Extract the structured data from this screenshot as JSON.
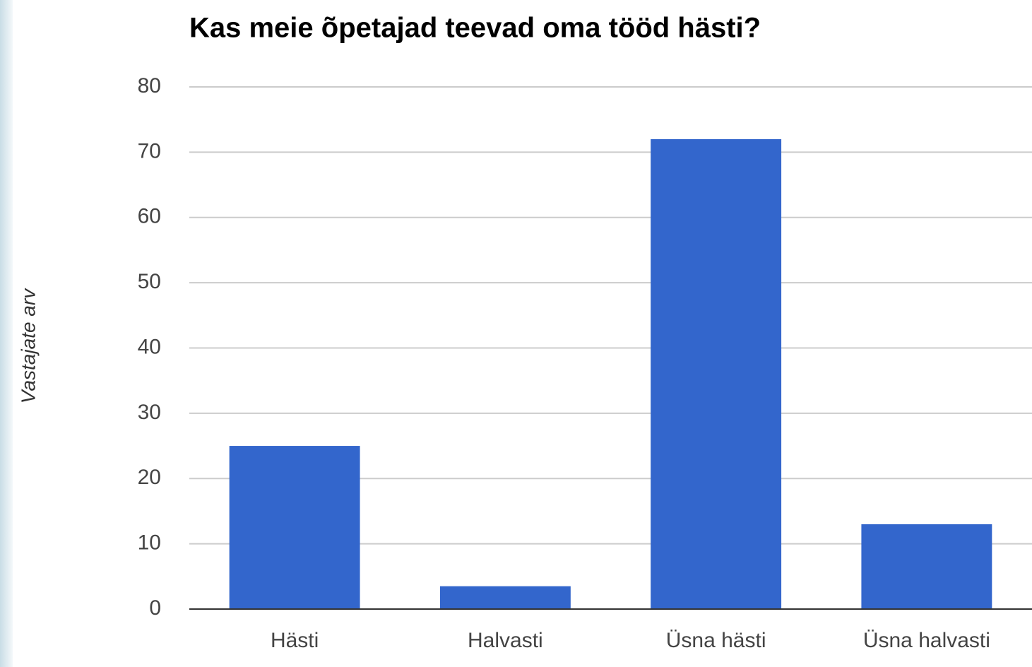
{
  "chart_data": {
    "type": "bar",
    "title": "Kas meie õpetajad teevad oma tööd hästi?",
    "y_label": "Vastajate arv",
    "categories": [
      "Hästi",
      "Halvasti",
      "Üsna hästi",
      "Üsna halvasti"
    ],
    "values": [
      25,
      3.5,
      72,
      13
    ],
    "color": "#3366cc",
    "ylim": [
      0,
      80
    ],
    "yticks": [
      0,
      10,
      20,
      30,
      40,
      50,
      60,
      70,
      80
    ],
    "grid": true
  }
}
